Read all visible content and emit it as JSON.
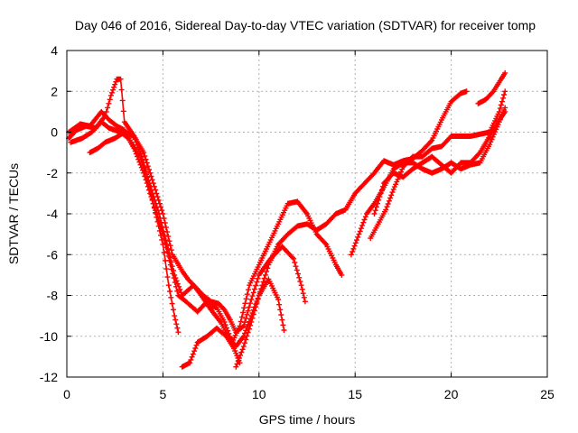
{
  "chart_data": {
    "type": "scatter",
    "title": "Day 046 of 2016, Sidereal Day-to-day VTEC variation (SDTVAR) for receiver tomp",
    "xlabel": "GPS time / hours",
    "ylabel": "SDTVAR / TECUs",
    "xlim": [
      0,
      25
    ],
    "ylim": [
      -12,
      4
    ],
    "xticks": [
      0,
      5,
      10,
      15,
      20,
      25
    ],
    "yticks": [
      -12,
      -10,
      -8,
      -6,
      -4,
      -2,
      0,
      2,
      4
    ],
    "grid": true,
    "marker": "+",
    "color": "#ff0000",
    "series": [
      {
        "points": [
          [
            0.1,
            -0.3
          ],
          [
            0.5,
            0.1
          ],
          [
            1.0,
            0.3
          ],
          [
            1.5,
            0.2
          ],
          [
            2.0,
            0.8
          ],
          [
            2.3,
            1.8
          ],
          [
            2.6,
            2.6
          ],
          [
            2.8,
            2.6
          ],
          [
            3.0,
            0.5
          ],
          [
            3.5,
            -0.2
          ],
          [
            4.0,
            -1.5
          ],
          [
            4.5,
            -3.5
          ],
          [
            5.0,
            -5.5
          ],
          [
            5.3,
            -7.5
          ],
          [
            5.6,
            -9.0
          ],
          [
            5.8,
            -9.8
          ]
        ]
      },
      {
        "points": [
          [
            0.1,
            0.0
          ],
          [
            0.7,
            0.4
          ],
          [
            1.2,
            0.3
          ],
          [
            1.8,
            1.0
          ],
          [
            2.2,
            0.6
          ],
          [
            2.6,
            0.3
          ],
          [
            3.0,
            0.1
          ],
          [
            3.5,
            -0.8
          ],
          [
            4.0,
            -2.0
          ],
          [
            4.5,
            -3.5
          ],
          [
            5.0,
            -5.0
          ],
          [
            5.4,
            -6.5
          ],
          [
            5.8,
            -8.0
          ],
          [
            6.2,
            -8.3
          ],
          [
            6.8,
            -8.8
          ],
          [
            7.2,
            -8.4
          ],
          [
            7.8,
            -8.6
          ],
          [
            8.2,
            -9.3
          ],
          [
            8.6,
            -10.3
          ],
          [
            9.0,
            -9.5
          ],
          [
            9.5,
            -7.5
          ],
          [
            10.0,
            -6.5
          ],
          [
            10.5,
            -5.5
          ],
          [
            11.0,
            -4.5
          ],
          [
            11.5,
            -3.5
          ],
          [
            12.0,
            -3.4
          ],
          [
            12.5,
            -4.0
          ],
          [
            13.0,
            -5.0
          ],
          [
            13.5,
            -5.5
          ],
          [
            14.0,
            -6.5
          ],
          [
            14.3,
            -7.0
          ]
        ]
      },
      {
        "points": [
          [
            0.2,
            -0.5
          ],
          [
            0.8,
            -0.3
          ],
          [
            1.3,
            0.0
          ],
          [
            1.8,
            0.5
          ],
          [
            2.2,
            0.2
          ],
          [
            2.8,
            0.0
          ],
          [
            3.2,
            -0.3
          ],
          [
            3.8,
            -1.2
          ],
          [
            4.3,
            -2.5
          ],
          [
            4.8,
            -4.0
          ],
          [
            5.2,
            -5.5
          ],
          [
            5.6,
            -7.0
          ],
          [
            6.0,
            -8.0
          ],
          [
            6.6,
            -7.5
          ],
          [
            7.0,
            -8.0
          ],
          [
            7.5,
            -8.7
          ],
          [
            8.0,
            -9.3
          ],
          [
            8.4,
            -10.0
          ],
          [
            8.8,
            -10.5
          ],
          [
            9.2,
            -10.0
          ],
          [
            9.6,
            -9.0
          ],
          [
            10.0,
            -8.0
          ],
          [
            10.5,
            -6.5
          ],
          [
            11.0,
            -5.5
          ],
          [
            11.5,
            -5.0
          ],
          [
            12.0,
            -4.6
          ],
          [
            12.5,
            -4.5
          ],
          [
            13.0,
            -4.8
          ],
          [
            13.5,
            -4.5
          ],
          [
            14.0,
            -4.0
          ],
          [
            14.5,
            -3.8
          ],
          [
            15.0,
            -3.0
          ],
          [
            15.5,
            -2.5
          ],
          [
            16.0,
            -2.0
          ],
          [
            16.5,
            -1.4
          ],
          [
            17.0,
            -1.6
          ],
          [
            17.5,
            -1.4
          ],
          [
            18.0,
            -1.3
          ],
          [
            18.5,
            -0.9
          ],
          [
            19.0,
            -0.4
          ],
          [
            19.5,
            0.6
          ],
          [
            20.0,
            1.5
          ],
          [
            20.5,
            1.9
          ],
          [
            20.8,
            2.0
          ]
        ]
      },
      {
        "points": [
          [
            1.2,
            -1.0
          ],
          [
            1.6,
            -0.8
          ],
          [
            2.0,
            -0.5
          ],
          [
            2.5,
            -0.3
          ],
          [
            3.0,
            0.0
          ],
          [
            3.5,
            -0.2
          ],
          [
            4.0,
            -1.0
          ],
          [
            4.5,
            -2.5
          ],
          [
            5.0,
            -4.0
          ],
          [
            5.5,
            -6.0
          ],
          [
            6.0,
            -6.8
          ],
          [
            6.3,
            -7.2
          ],
          [
            6.7,
            -7.6
          ],
          [
            7.1,
            -8.0
          ],
          [
            7.5,
            -8.3
          ],
          [
            7.9,
            -8.4
          ],
          [
            8.2,
            -8.7
          ],
          [
            8.5,
            -9.2
          ],
          [
            8.8,
            -9.8
          ],
          [
            9.2,
            -9.5
          ],
          [
            9.6,
            -8.2
          ],
          [
            10.0,
            -7.0
          ],
          [
            10.6,
            -6.2
          ],
          [
            11.2,
            -5.6
          ],
          [
            11.8,
            -6.2
          ],
          [
            12.2,
            -7.5
          ],
          [
            12.4,
            -8.3
          ]
        ]
      },
      {
        "points": [
          [
            6.0,
            -11.5
          ],
          [
            6.4,
            -11.3
          ],
          [
            6.8,
            -10.3
          ],
          [
            7.3,
            -10.0
          ],
          [
            7.8,
            -9.6
          ],
          [
            8.3,
            -10.0
          ],
          [
            8.7,
            -10.6
          ],
          [
            9.0,
            -11.3
          ]
        ]
      },
      {
        "points": [
          [
            8.8,
            -11.5
          ],
          [
            9.2,
            -10.5
          ],
          [
            9.6,
            -9.3
          ],
          [
            10.0,
            -8.0
          ],
          [
            10.5,
            -7.2
          ],
          [
            11.0,
            -8.2
          ],
          [
            11.3,
            -9.7
          ]
        ]
      },
      {
        "points": [
          [
            14.8,
            -6.0
          ],
          [
            15.2,
            -5.0
          ],
          [
            15.6,
            -4.0
          ],
          [
            16.0,
            -3.5
          ],
          [
            16.5,
            -2.7
          ],
          [
            17.0,
            -1.8
          ],
          [
            17.5,
            -1.5
          ],
          [
            18.0,
            -1.5
          ],
          [
            18.5,
            -1.8
          ],
          [
            19.0,
            -2.0
          ],
          [
            19.5,
            -1.8
          ],
          [
            20.0,
            -1.5
          ],
          [
            20.5,
            -1.8
          ],
          [
            21.0,
            -1.6
          ],
          [
            21.5,
            -1.5
          ],
          [
            22.0,
            -0.6
          ],
          [
            22.5,
            0.5
          ],
          [
            22.8,
            1.2
          ]
        ]
      },
      {
        "points": [
          [
            15.8,
            -5.2
          ],
          [
            16.2,
            -4.5
          ],
          [
            16.6,
            -3.8
          ],
          [
            17.0,
            -2.8
          ],
          [
            17.5,
            -1.7
          ],
          [
            18.0,
            -1.2
          ],
          [
            18.5,
            -1.2
          ],
          [
            19.0,
            -0.8
          ],
          [
            19.5,
            -0.7
          ],
          [
            20.0,
            -0.2
          ],
          [
            20.5,
            -0.2
          ],
          [
            21.0,
            -0.2
          ],
          [
            21.5,
            -0.1
          ],
          [
            22.0,
            0.0
          ],
          [
            22.5,
            1.0
          ],
          [
            22.8,
            2.0
          ]
        ]
      },
      {
        "points": [
          [
            16.0,
            -4.0
          ],
          [
            16.5,
            -2.5
          ],
          [
            17.0,
            -2.0
          ],
          [
            17.5,
            -2.2
          ],
          [
            18.0,
            -1.8
          ],
          [
            18.5,
            -1.5
          ],
          [
            19.0,
            -1.2
          ],
          [
            19.5,
            -1.6
          ],
          [
            20.0,
            -2.0
          ],
          [
            20.5,
            -1.5
          ],
          [
            21.0,
            -1.5
          ],
          [
            21.5,
            -1.0
          ],
          [
            22.0,
            -0.2
          ],
          [
            22.5,
            0.6
          ],
          [
            22.8,
            1.0
          ]
        ]
      },
      {
        "points": [
          [
            21.4,
            1.4
          ],
          [
            21.8,
            1.6
          ],
          [
            22.2,
            2.0
          ],
          [
            22.6,
            2.6
          ],
          [
            22.8,
            2.9
          ]
        ]
      }
    ]
  }
}
